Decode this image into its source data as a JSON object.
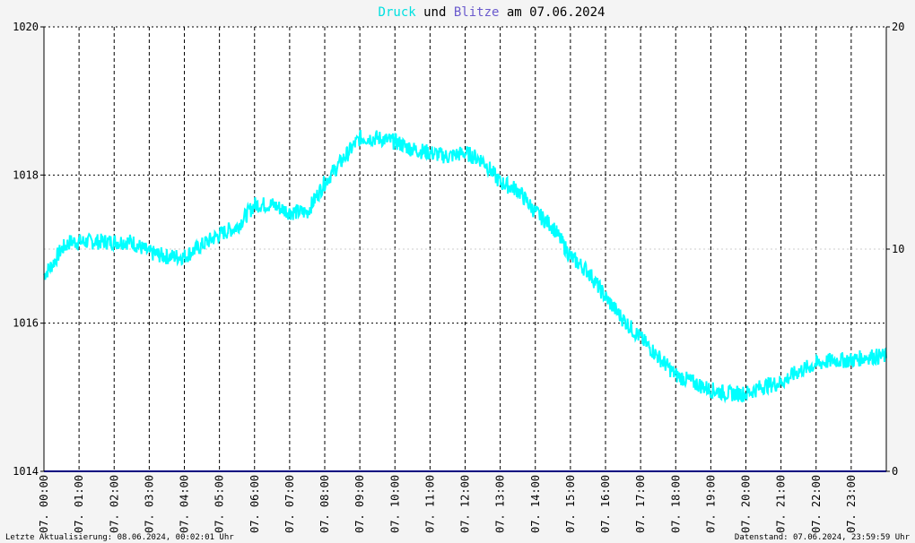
{
  "chart_data": {
    "type": "line",
    "title_parts": [
      "Druck",
      " und ",
      "Blitze",
      " am 07.06.2024"
    ],
    "title_colors": [
      "#00e0e0",
      "#000000",
      "#6a5acd",
      "#000000"
    ],
    "ylim_left": [
      1014,
      1020
    ],
    "ylim_right": [
      0,
      20
    ],
    "yticks_left": [
      "1014",
      "1016",
      "1018",
      "1020"
    ],
    "yticks_right": [
      "0",
      "10",
      "20"
    ],
    "xtick_labels": [
      "07. 00:00",
      "07. 01:00",
      "07. 02:00",
      "07. 03:00",
      "07. 04:00",
      "07. 05:00",
      "07. 06:00",
      "07. 07:00",
      "07. 08:00",
      "07. 09:00",
      "07. 10:00",
      "07. 11:00",
      "07. 12:00",
      "07. 13:00",
      "07. 14:00",
      "07. 15:00",
      "07. 16:00",
      "07. 17:00",
      "07. 18:00",
      "07. 19:00",
      "07. 20:00",
      "07. 21:00",
      "07. 22:00",
      "07. 23:00"
    ],
    "series": [
      {
        "name": "Druck",
        "color": "#00ffff",
        "axis": "left",
        "x_hours": [
          0,
          0.25,
          0.5,
          0.75,
          1,
          1.5,
          2,
          2.5,
          3,
          3.5,
          4,
          4.5,
          5,
          5.5,
          6,
          6.5,
          7,
          7.5,
          8,
          8.5,
          9,
          9.5,
          10,
          10.5,
          11,
          11.5,
          12,
          12.5,
          13,
          13.5,
          14,
          14.5,
          15,
          15.5,
          16,
          16.5,
          17,
          17.5,
          18,
          18.5,
          19,
          19.5,
          20,
          20.5,
          21,
          21.5,
          22,
          22.5,
          23,
          23.5,
          24
        ],
        "values": [
          1016.65,
          1016.8,
          1017.0,
          1017.1,
          1017.1,
          1017.1,
          1017.1,
          1017.1,
          1016.95,
          1016.9,
          1016.9,
          1017.05,
          1017.2,
          1017.3,
          1017.6,
          1017.6,
          1017.5,
          1017.5,
          1017.9,
          1018.2,
          1018.5,
          1018.5,
          1018.45,
          1018.35,
          1018.3,
          1018.25,
          1018.3,
          1018.2,
          1017.9,
          1017.8,
          1017.5,
          1017.3,
          1016.9,
          1016.7,
          1016.35,
          1016.05,
          1015.8,
          1015.55,
          1015.3,
          1015.2,
          1015.1,
          1015.05,
          1015.05,
          1015.15,
          1015.2,
          1015.35,
          1015.45,
          1015.5,
          1015.5,
          1015.55,
          1015.55
        ]
      },
      {
        "name": "Blitze",
        "color": "#000080",
        "axis": "right",
        "x_hours": [
          0,
          24
        ],
        "values": [
          0,
          0
        ]
      }
    ],
    "grid": true
  },
  "footer": {
    "left": "Letzte Aktualisierung: 08.06.2024, 00:02:01 Uhr",
    "right": "Datenstand: 07.06.2024, 23:59:59 Uhr"
  }
}
